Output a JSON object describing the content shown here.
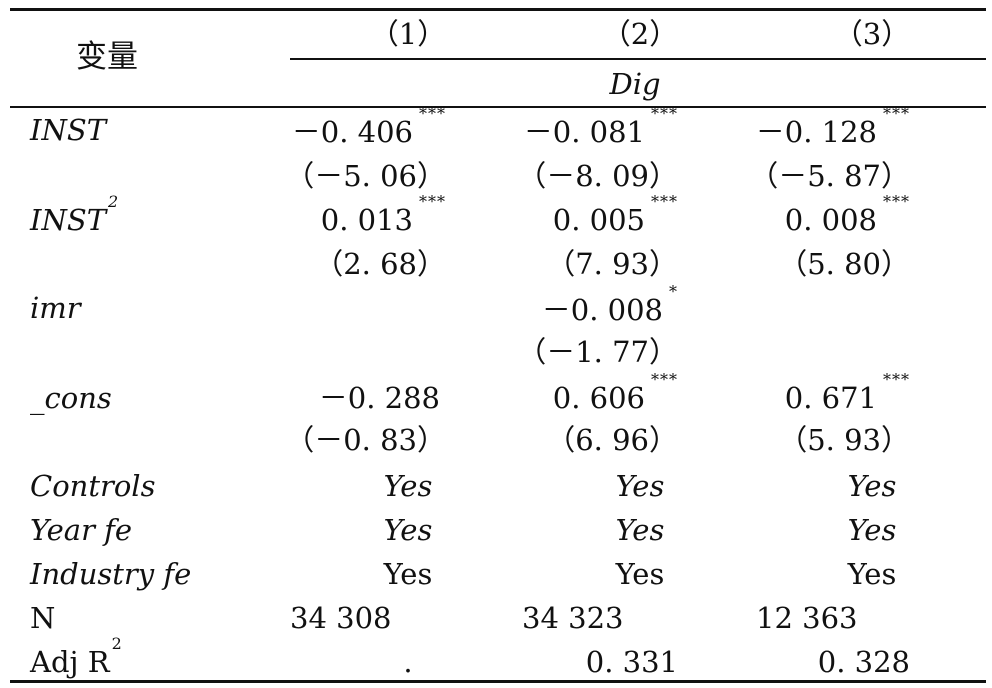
{
  "table": {
    "var_header": "变量",
    "columns": [
      "（1）",
      "（2）",
      "（3）"
    ],
    "dependent": "Dig",
    "rows": [
      {
        "name": "INST",
        "coef": [
          "－0. 406",
          "－0. 081",
          "－0. 128"
        ],
        "stars": [
          "***",
          "***",
          "***"
        ],
        "tstat": [
          "（－5. 06）",
          "（－8. 09）",
          "（－5. 87）"
        ]
      },
      {
        "name": "INST",
        "name_sup": "2",
        "coef": [
          "0. 013",
          "0. 005",
          "0. 008"
        ],
        "stars": [
          "***",
          "***",
          "***"
        ],
        "tstat": [
          "（2. 68）",
          "（7. 93）",
          "（5. 80）"
        ]
      },
      {
        "name": "imr",
        "coef": [
          "",
          "－0. 008",
          ""
        ],
        "stars": [
          "",
          "*",
          ""
        ],
        "tstat": [
          "",
          "（－1. 77）",
          ""
        ]
      },
      {
        "name": "_cons",
        "coef": [
          "－0. 288",
          "0. 606",
          "0. 671"
        ],
        "stars": [
          "",
          "***",
          "***"
        ],
        "tstat": [
          "（－0. 83）",
          "（6. 96）",
          "（5. 93）"
        ]
      }
    ],
    "footer": [
      {
        "name": "Controls",
        "values": [
          "Yes",
          "Yes",
          "Yes"
        ]
      },
      {
        "name": "Year fe",
        "values": [
          "Yes",
          "Yes",
          "Yes"
        ]
      },
      {
        "name": "Industry fe",
        "values": [
          "Yes",
          "Yes",
          "Yes"
        ]
      },
      {
        "name": "N",
        "values": [
          "34 308",
          "34 323",
          "12 363"
        ]
      },
      {
        "name": "Adj R",
        "name_sup": "2",
        "values": [
          ".",
          "0. 331",
          "0. 328"
        ]
      }
    ]
  }
}
